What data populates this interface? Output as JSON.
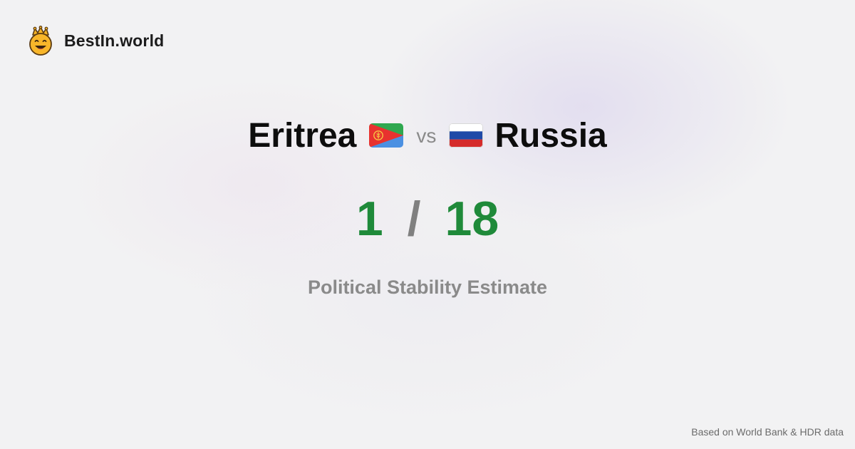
{
  "brand": {
    "name": "BestIn.world",
    "logo_icon": "crowned-smiley-icon"
  },
  "comparison": {
    "left": {
      "country": "Eritrea",
      "flag_icon": "eritrea-flag-icon",
      "score": "1"
    },
    "separator": "vs",
    "right": {
      "country": "Russia",
      "flag_icon": "russia-flag-icon",
      "score": "18"
    },
    "score_separator": "/"
  },
  "metric": "Political Stability Estimate",
  "footer": {
    "source_note": "Based on World Bank & HDR data"
  },
  "colors": {
    "score": "#1f8a3a",
    "muted": "#8a8a8a",
    "text": "#0d0d0d",
    "background": "#f2f2f3"
  }
}
